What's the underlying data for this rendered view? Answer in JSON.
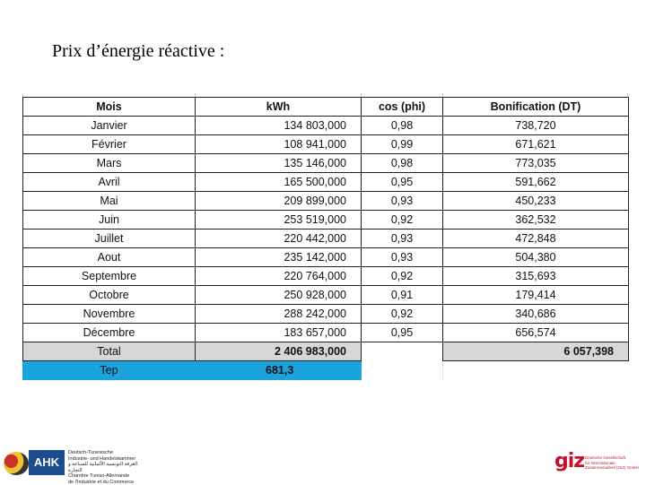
{
  "title": "Prix d’énergie réactive :",
  "table": {
    "headers": [
      "Mois",
      "kWh",
      "cos (phi)",
      "Bonification (DT)"
    ],
    "rows": [
      {
        "mois": "Janvier",
        "kwh": "134 803,000",
        "cos": "0,98",
        "bon": "738,720"
      },
      {
        "mois": "Février",
        "kwh": "108 941,000",
        "cos": "0,99",
        "bon": "671,621"
      },
      {
        "mois": "Mars",
        "kwh": "135 146,000",
        "cos": "0,98",
        "bon": "773,035"
      },
      {
        "mois": "Avril",
        "kwh": "165 500,000",
        "cos": "0,95",
        "bon": "591,662"
      },
      {
        "mois": "Mai",
        "kwh": "209 899,000",
        "cos": "0,93",
        "bon": "450,233"
      },
      {
        "mois": "Juin",
        "kwh": "253 519,000",
        "cos": "0,92",
        "bon": "362,532"
      },
      {
        "mois": "Juillet",
        "kwh": "220 442,000",
        "cos": "0,93",
        "bon": "472,848"
      },
      {
        "mois": "Aout",
        "kwh": "235 142,000",
        "cos": "0,93",
        "bon": "504,380"
      },
      {
        "mois": "Septembre",
        "kwh": "220 764,000",
        "cos": "0,92",
        "bon": "315,693"
      },
      {
        "mois": "Octobre",
        "kwh": "250 928,000",
        "cos": "0,91",
        "bon": "179,414"
      },
      {
        "mois": "Novembre",
        "kwh": "288 242,000",
        "cos": "0,92",
        "bon": "340,686"
      },
      {
        "mois": "Décembre",
        "kwh": "183 657,000",
        "cos": "0,95",
        "bon": "656,574"
      }
    ],
    "total": {
      "label": "Total",
      "kwh": "2 406 983,000",
      "bon": "6 057,398"
    },
    "tep": {
      "label": "Tep",
      "value": "681,3"
    },
    "colors": {
      "total_bg": "#d7d7d7",
      "tep_bg": "#1aa3dc"
    }
  },
  "logos": {
    "ahk": {
      "mark": "AHK",
      "lines": [
        "Deutsch-Tunesische",
        "Industrie- und Handelskammer",
        "الغرفة التونسية الألمانية للصناعة و التجارة",
        "Chambre Tuniso-Allemande",
        "de l'Industrie et du Commerce"
      ]
    },
    "giz": {
      "mark": "giz",
      "lines": [
        "Deutsche Gesellschaft",
        "für Internationale",
        "Zusammenarbeit (GIZ) GmbH"
      ]
    }
  }
}
